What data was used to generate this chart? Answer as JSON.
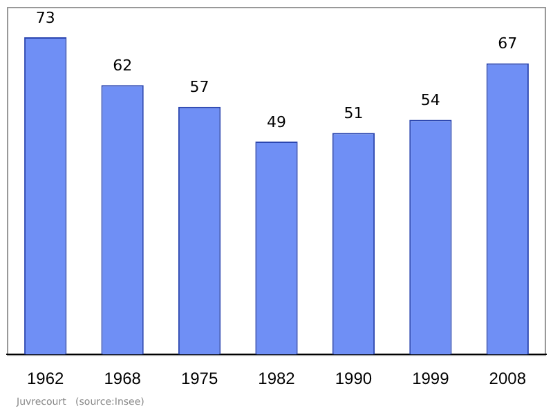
{
  "chart_data": {
    "type": "bar",
    "categories": [
      "1962",
      "1968",
      "1975",
      "1982",
      "1990",
      "1999",
      "2008"
    ],
    "values": [
      73,
      62,
      57,
      49,
      51,
      54,
      67
    ],
    "color": "#6f8ff5",
    "data_labels": true,
    "annotations": [
      "Juvrecourt   (source:Insee)"
    ]
  }
}
